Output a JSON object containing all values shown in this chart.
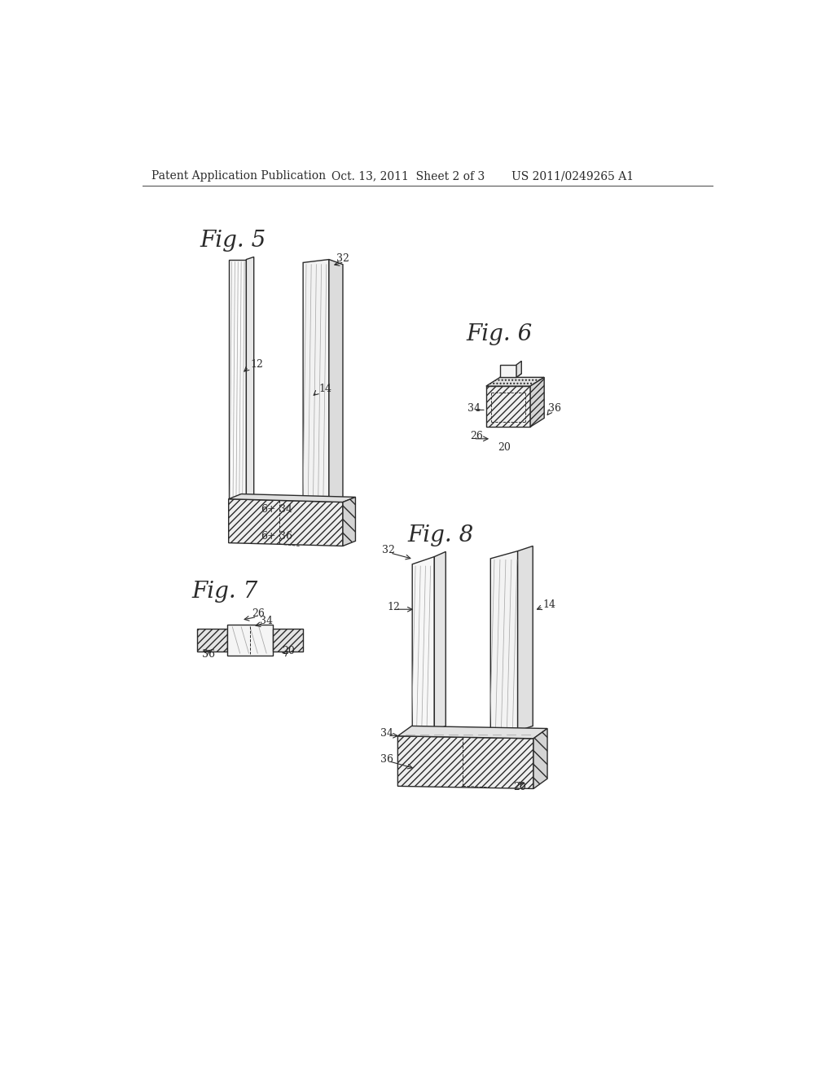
{
  "bg_color": "#ffffff",
  "line_color": "#2a2a2a",
  "header_text": "Patent Application Publication",
  "header_date": "Oct. 13, 2011  Sheet 2 of 3",
  "header_patent": "US 2011/0249265 A1",
  "fig5_label": "Fig. 5",
  "fig6_label": "Fig. 6",
  "fig7_label": "Fig. 7",
  "fig8_label": "Fig. 8",
  "fig_label_fontsize": 20,
  "header_fontsize": 10,
  "ref_fontsize": 9
}
